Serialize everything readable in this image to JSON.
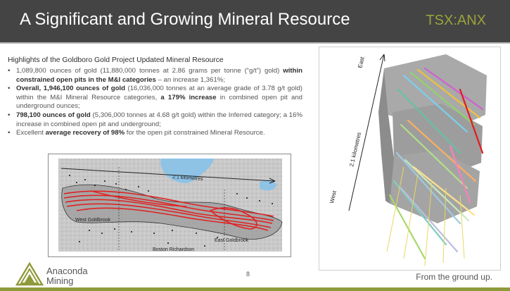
{
  "header": {
    "title": "A Significant and Growing Mineral Resource",
    "ticker": "TSX:ANX"
  },
  "highlights": {
    "heading": "Highlights of the Goldboro Gold Project Updated Mineral Resource",
    "bullets": [
      {
        "segments": [
          {
            "text": "1,089,800 ounces of gold (11,880,000 tonnes at 2.86 grams per tonne (“g/t”) gold) ",
            "bold": false
          },
          {
            "text": "within constrained open pits in the M&I categories",
            "bold": true
          },
          {
            "text": " – an increase 1,361%;",
            "bold": false
          }
        ]
      },
      {
        "segments": [
          {
            "text": "Overall, 1,946,100 ounces of gold",
            "bold": true
          },
          {
            "text": " (16,036,000 tonnes at an average grade of 3.78 g/t gold) within the M&I Mineral Resource categories, ",
            "bold": false
          },
          {
            "text": "a 179% increase",
            "bold": true
          },
          {
            "text": " in combined open pit and underground ounces;",
            "bold": false
          }
        ]
      },
      {
        "segments": [
          {
            "text": "798,100 ounces of gold",
            "bold": true
          },
          {
            "text": " (5,306,000 tonnes at 4.68 g/t gold) within the Inferred category; a 16% increase in combined open pit and underground;",
            "bold": false
          }
        ]
      },
      {
        "segments": [
          {
            "text": "Excellent ",
            "bold": false
          },
          {
            "text": "average recovery of 98%",
            "bold": true
          },
          {
            "text": " for the open pit constrained Mineral Resource.",
            "bold": false
          }
        ]
      }
    ]
  },
  "map": {
    "scale_label": "2.1 kilometres",
    "area_labels": [
      "West Goldbrook",
      "East Goldbrook",
      "Boston Richardson"
    ],
    "colors": {
      "water": "#8fc3e6",
      "vein": "#e02222",
      "pit_fill": "#a9a9a9"
    }
  },
  "block_model": {
    "label_east": "East",
    "label_west": "West",
    "label_distance": "2.1 kilometres"
  },
  "footer": {
    "company_line1": "Anaconda",
    "company_line2": "Mining",
    "page_number": "8",
    "tagline": "From the ground up."
  },
  "colors": {
    "header_bg": "#444444",
    "accent_olive": "#8f9a3a",
    "ticker": "#9aa33a"
  }
}
